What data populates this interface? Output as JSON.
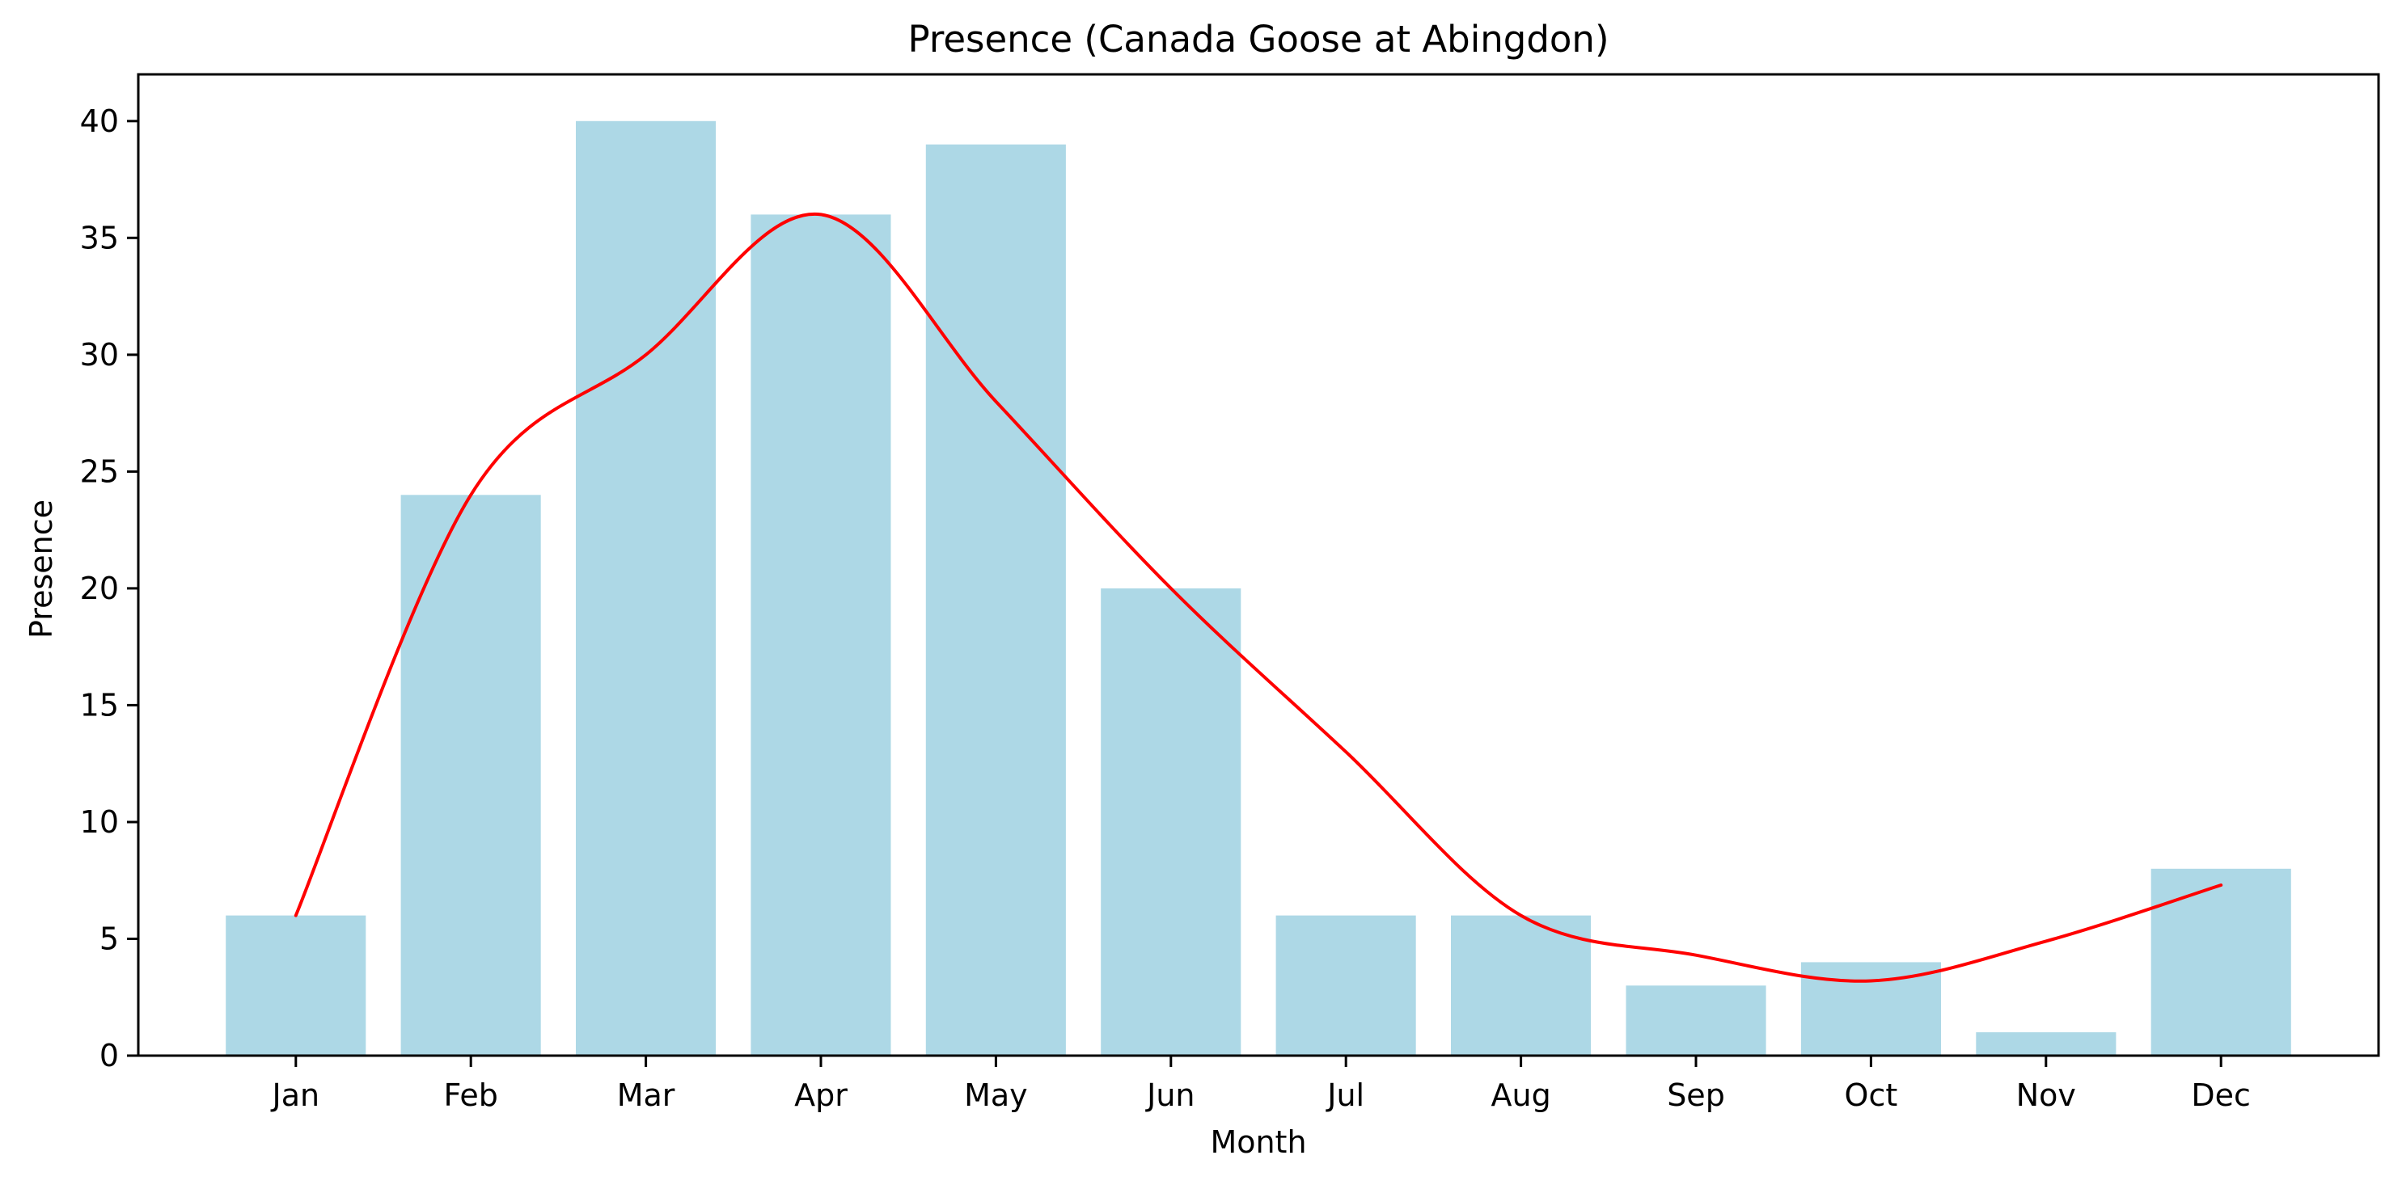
{
  "chart_data": {
    "type": "bar",
    "title": "Presence (Canada Goose at Abingdon)",
    "xlabel": "Month",
    "ylabel": "Presence",
    "categories": [
      "Jan",
      "Feb",
      "Mar",
      "Apr",
      "May",
      "Jun",
      "Jul",
      "Aug",
      "Sep",
      "Oct",
      "Nov",
      "Dec"
    ],
    "series": [
      {
        "type": "bar",
        "values": [
          6,
          24,
          40,
          36,
          39,
          20,
          6,
          6,
          3,
          4,
          1,
          8
        ],
        "color": "#add8e6"
      },
      {
        "type": "line",
        "values": [
          6,
          24,
          30,
          36,
          28,
          20,
          13,
          6,
          4.3,
          3.2,
          4.9,
          7.3
        ],
        "color": "#ff0000",
        "smooth": true
      }
    ],
    "ylim": [
      0,
      42
    ],
    "yticks": [
      0,
      5,
      10,
      15,
      20,
      25,
      30,
      35,
      40
    ],
    "grid": false,
    "legend": "none"
  }
}
